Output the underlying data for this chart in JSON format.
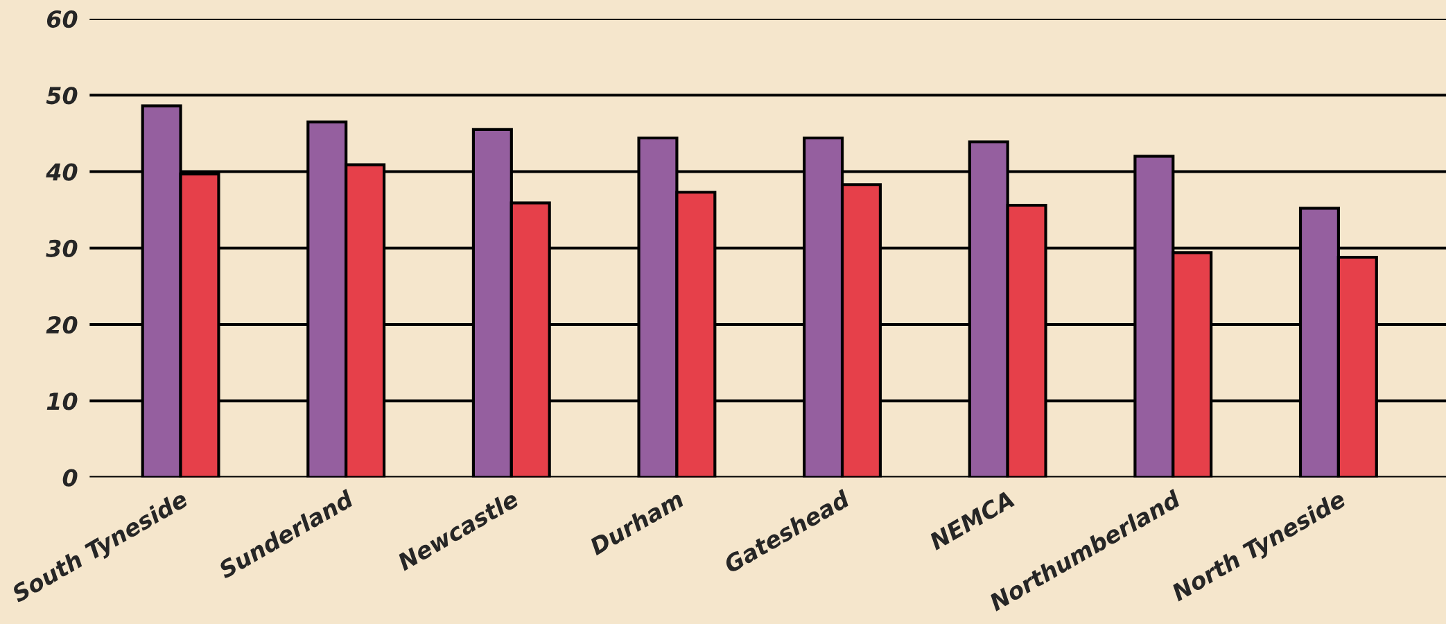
{
  "chart_data": {
    "type": "bar",
    "categories": [
      "South Tyneside",
      "Sunderland",
      "Newcastle",
      "Durham",
      "Gateshead",
      "NEMCA",
      "Northumberland",
      "North Tyneside"
    ],
    "series": [
      {
        "color": "#955f9f",
        "values": [
          48.6,
          46.5,
          45.5,
          44.4,
          44.4,
          43.9,
          42.0,
          35.2
        ]
      },
      {
        "color": "#e6404a",
        "values": [
          39.7,
          40.9,
          35.9,
          37.3,
          38.3,
          35.6,
          29.4,
          28.8
        ]
      }
    ],
    "ylim": [
      0,
      60
    ],
    "yticks": [
      0,
      10,
      20,
      30,
      40,
      50,
      60
    ],
    "grid": "y",
    "legend": false
  }
}
